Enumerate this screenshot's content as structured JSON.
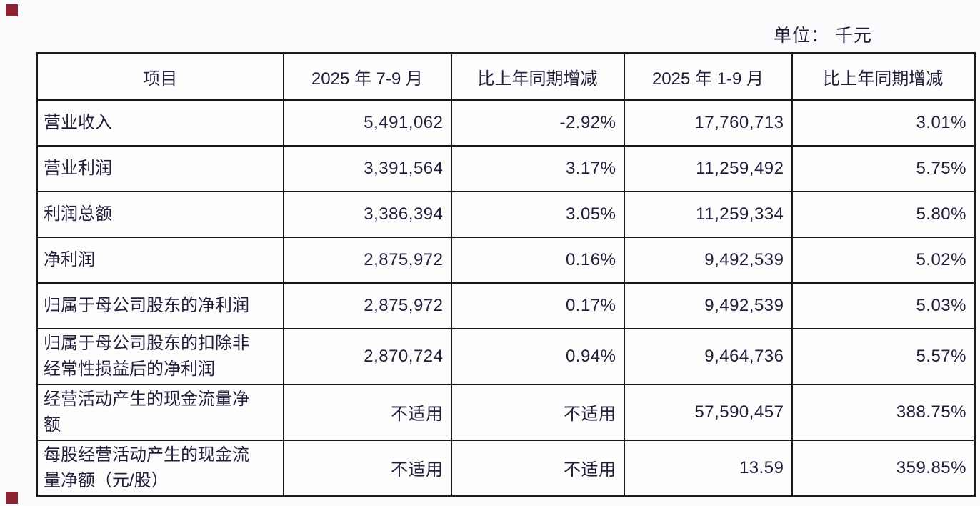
{
  "unit_note": "单位： 千元",
  "colors": {
    "text": "#20203a",
    "border": "#1a1a1a",
    "background": "#fbfbfd",
    "corner_mark": "#8b2430"
  },
  "table": {
    "headers": [
      "项目",
      "2025 年 7-9 月",
      "比上年同期增减",
      "2025 年 1-9 月",
      "比上年同期增减"
    ],
    "rows": [
      {
        "label": "营业收入",
        "values": [
          "5,491,062",
          "-2.92%",
          "17,760,713",
          "3.01%"
        ],
        "tall": false
      },
      {
        "label": "营业利润",
        "values": [
          "3,391,564",
          "3.17%",
          "11,259,492",
          "5.75%"
        ],
        "tall": false
      },
      {
        "label": "利润总额",
        "values": [
          "3,386,394",
          "3.05%",
          "11,259,334",
          "5.80%"
        ],
        "tall": false
      },
      {
        "label": "净利润",
        "values": [
          "2,875,972",
          "0.16%",
          "9,492,539",
          "5.02%"
        ],
        "tall": false
      },
      {
        "label": "归属于母公司股东的净利润",
        "values": [
          "2,875,972",
          "0.17%",
          "9,492,539",
          "5.03%"
        ],
        "tall": false
      },
      {
        "label": "归属于母公司股东的扣除非\n经常性损益后的净利润",
        "values": [
          "2,870,724",
          "0.94%",
          "9,464,736",
          "5.57%"
        ],
        "tall": true
      },
      {
        "label": "经营活动产生的现金流量净\n额",
        "values": [
          "不适用",
          "不适用",
          "57,590,457",
          "388.75%"
        ],
        "tall": true
      },
      {
        "label": "每股经营活动产生的现金流\n量净额（元/股）",
        "values": [
          "不适用",
          "不适用",
          "13.59",
          "359.85%"
        ],
        "tall": true
      }
    ]
  }
}
